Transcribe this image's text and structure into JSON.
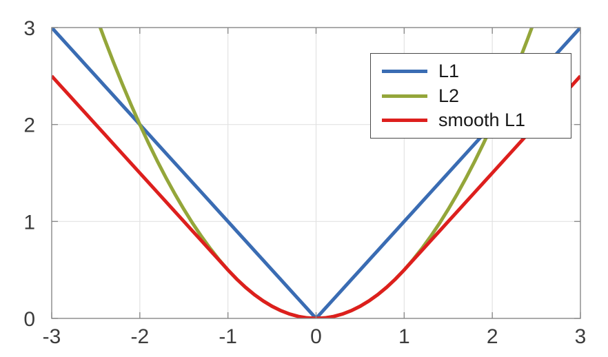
{
  "chart_data": {
    "type": "line",
    "title": "",
    "xlabel": "",
    "ylabel": "",
    "xlim": [
      -3,
      3
    ],
    "ylim": [
      0,
      3
    ],
    "grid": true,
    "legend_position": "upper right",
    "x_ticks": [
      -3,
      -2,
      -1,
      0,
      1,
      2,
      3
    ],
    "x_tick_labels": [
      "-3",
      "-2",
      "-1",
      "0",
      "1",
      "2",
      "3"
    ],
    "y_ticks": [
      0,
      1,
      2,
      3
    ],
    "y_tick_labels": [
      "0",
      "1",
      "2",
      "3"
    ],
    "colors": {
      "background": "#FFFFFF",
      "grid": "#E2E2E2",
      "axis": "#8A8A8A",
      "tick_label": "#3C3C3C",
      "legend_border": "#474747"
    },
    "x": [
      -3,
      -2.9,
      -2.8,
      -2.7,
      -2.6,
      -2.5,
      -2.4,
      -2.3,
      -2.2,
      -2.1,
      -2,
      -1.9,
      -1.8,
      -1.7,
      -1.6,
      -1.5,
      -1.4,
      -1.3,
      -1.2,
      -1.1,
      -1,
      -0.9,
      -0.8,
      -0.7,
      -0.6,
      -0.5,
      -0.4,
      -0.3,
      -0.2,
      -0.1,
      0,
      0.1,
      0.2,
      0.3,
      0.4,
      0.5,
      0.6,
      0.7,
      0.8,
      0.9,
      1,
      1.1,
      1.2,
      1.3,
      1.4,
      1.5,
      1.6,
      1.7,
      1.8,
      1.9,
      2,
      2.1,
      2.2,
      2.3,
      2.4,
      2.5,
      2.6,
      2.7,
      2.8,
      2.9,
      3
    ],
    "series": [
      {
        "name": "L1",
        "color": "#3A6CB3",
        "formula": "y = |x|",
        "values": [
          3,
          2.9,
          2.8,
          2.7,
          2.6,
          2.5,
          2.4,
          2.3,
          2.2,
          2.1,
          2,
          1.9,
          1.8,
          1.7,
          1.6,
          1.5,
          1.4,
          1.3,
          1.2,
          1.1,
          1,
          0.9,
          0.8,
          0.7,
          0.6,
          0.5,
          0.4,
          0.3,
          0.2,
          0.1,
          0,
          0.1,
          0.2,
          0.3,
          0.4,
          0.5,
          0.6,
          0.7,
          0.8,
          0.9,
          1,
          1.1,
          1.2,
          1.3,
          1.4,
          1.5,
          1.6,
          1.7,
          1.8,
          1.9,
          2,
          2.1,
          2.2,
          2.3,
          2.4,
          2.5,
          2.6,
          2.7,
          2.8,
          2.9,
          3
        ]
      },
      {
        "name": "L2",
        "color": "#94A63A",
        "formula": "y = 0.5*x^2",
        "values": [
          4.5,
          4.205,
          3.92,
          3.645,
          3.38,
          3.125,
          2.88,
          2.645,
          2.42,
          2.205,
          2,
          1.805,
          1.62,
          1.445,
          1.28,
          1.125,
          0.98,
          0.845,
          0.72,
          0.605,
          0.5,
          0.405,
          0.32,
          0.245,
          0.18,
          0.125,
          0.08,
          0.045,
          0.02,
          0.005,
          0,
          0.005,
          0.02,
          0.045,
          0.08,
          0.125,
          0.18,
          0.245,
          0.32,
          0.405,
          0.5,
          0.605,
          0.72,
          0.845,
          0.98,
          1.125,
          1.28,
          1.445,
          1.62,
          1.805,
          2,
          2.205,
          2.42,
          2.645,
          2.88,
          3.125,
          3.38,
          3.645,
          3.92,
          4.205,
          4.5
        ]
      },
      {
        "name": "smooth L1",
        "color": "#DD1F1D",
        "formula": "y = 0.5*x^2 if |x|<1 else |x|-0.5",
        "values": [
          2.5,
          2.4,
          2.3,
          2.2,
          2.1,
          2,
          1.9,
          1.8,
          1.7,
          1.6,
          1.5,
          1.4,
          1.3,
          1.2,
          1.1,
          1,
          0.9,
          0.8,
          0.7,
          0.6,
          0.5,
          0.405,
          0.32,
          0.245,
          0.18,
          0.125,
          0.08,
          0.045,
          0.02,
          0.005,
          0,
          0.005,
          0.02,
          0.045,
          0.08,
          0.125,
          0.18,
          0.245,
          0.32,
          0.405,
          0.5,
          0.6,
          0.7,
          0.8,
          0.9,
          1,
          1.1,
          1.2,
          1.3,
          1.4,
          1.5,
          1.6,
          1.7,
          1.8,
          1.9,
          2,
          2.1,
          2.2,
          2.3,
          2.4,
          2.5
        ]
      }
    ]
  }
}
